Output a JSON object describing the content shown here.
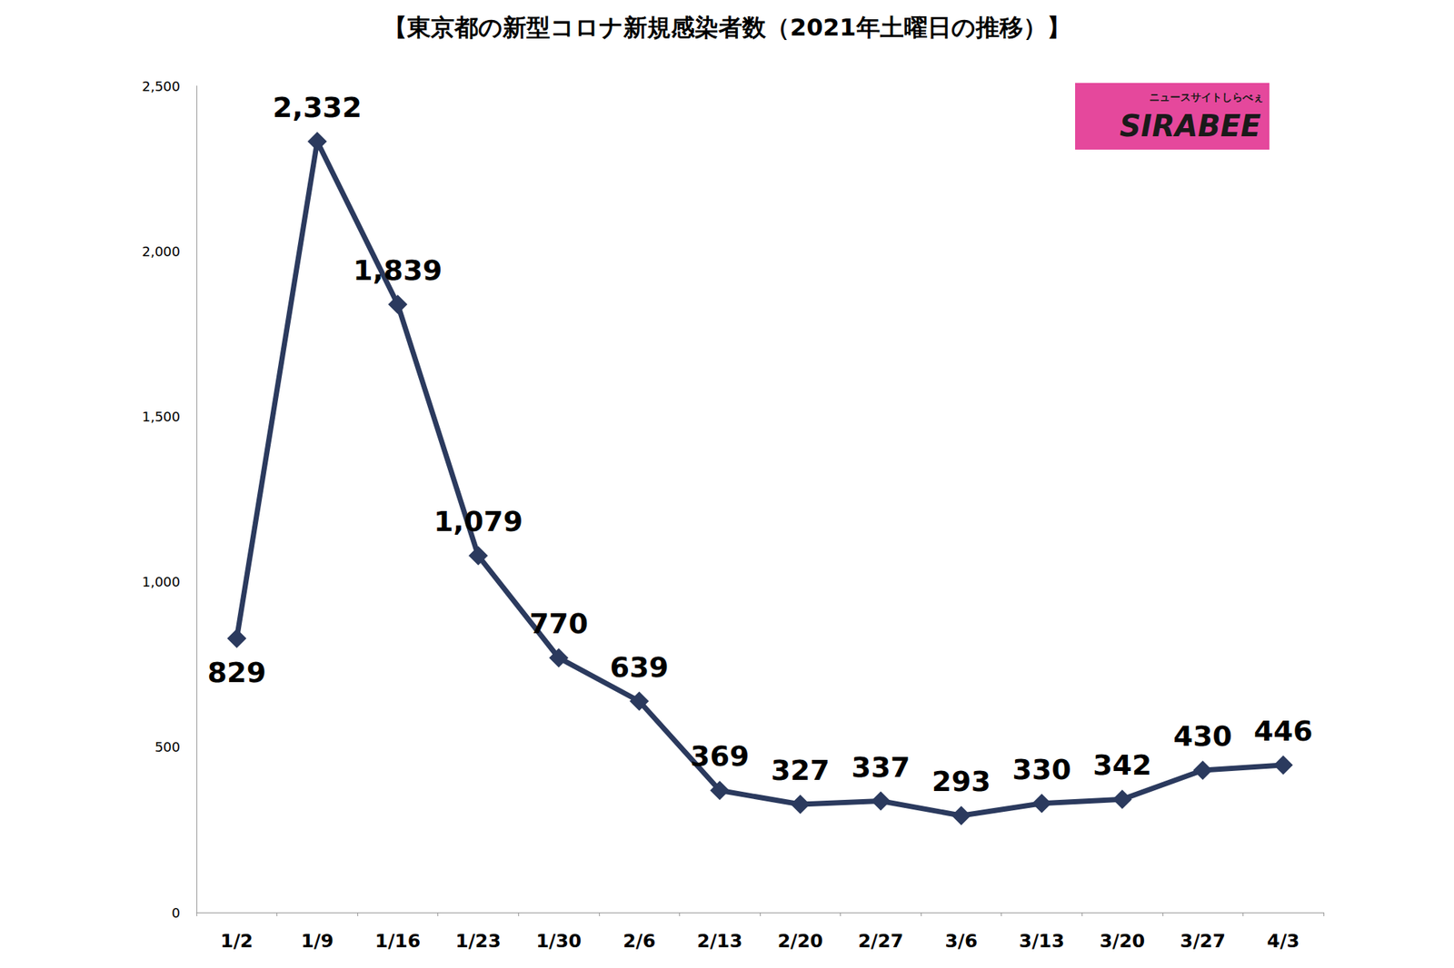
{
  "chart_data": {
    "type": "line",
    "title": "【東京都の新型コロナ新規感染者数（2021年土曜日の推移）】",
    "annotations": [
      "SIRABEE",
      "ニュースサイトしらべぇ"
    ],
    "categories": [
      "1/2",
      "1/9",
      "1/16",
      "1/23",
      "1/30",
      "2/6",
      "2/13",
      "2/20",
      "2/27",
      "3/6",
      "3/13",
      "3/20",
      "3/27",
      "4/3"
    ],
    "values": [
      829,
      2332,
      1839,
      1079,
      770,
      639,
      369,
      327,
      337,
      293,
      330,
      342,
      430,
      446
    ],
    "value_labels": [
      "829",
      "2,332",
      "1,839",
      "1,079",
      "770",
      "639",
      "369",
      "327",
      "337",
      "293",
      "330",
      "342",
      "430",
      "446"
    ],
    "color": "#2b3a5e",
    "marker": "diamond",
    "line_style": "solid",
    "data_labels": true,
    "grid": false,
    "ylim": [
      0,
      2500
    ],
    "yticks": [
      0,
      500,
      {
        "value": 1000,
        "label": "1,000"
      },
      {
        "value": 1500,
        "label": "1,500"
      },
      {
        "value": 2000,
        "label": "2,000"
      },
      {
        "value": 2500,
        "label": "2,500"
      }
    ]
  }
}
